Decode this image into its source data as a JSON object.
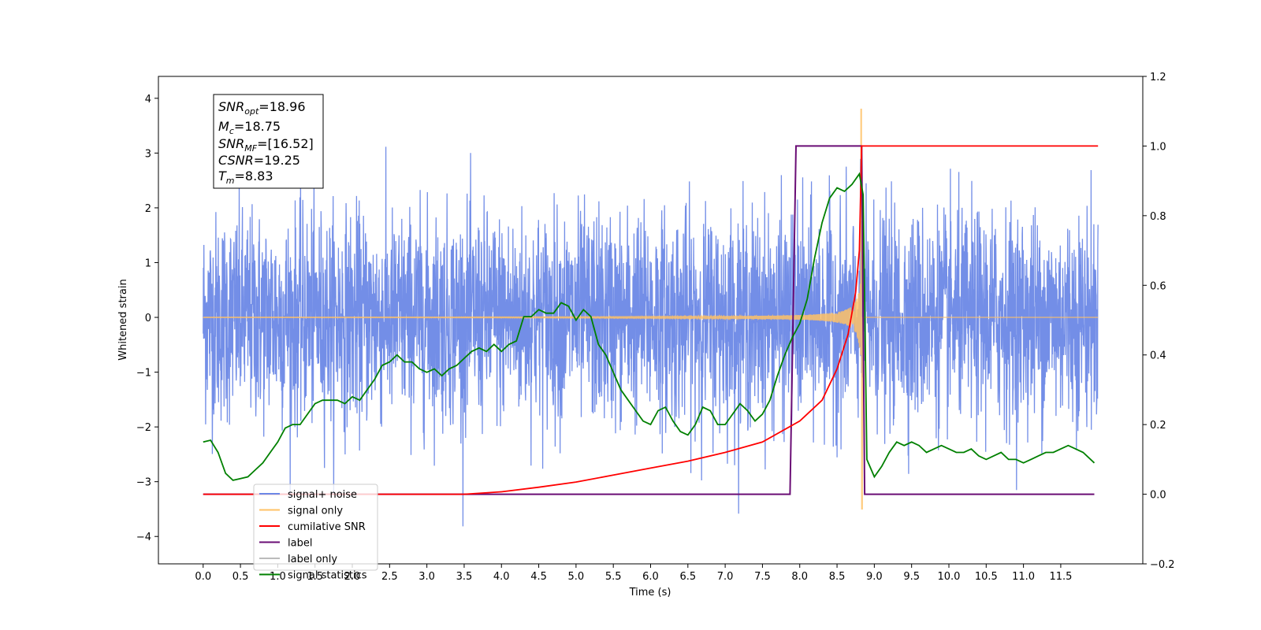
{
  "chart_data": {
    "type": "line",
    "xlabel": "Time (s)",
    "ylabel_left": "Whitened strain",
    "xlim": [
      -0.6,
      12.6
    ],
    "ylim_left": [
      -4.5,
      4.4
    ],
    "ylim_right": [
      -0.2,
      1.2
    ],
    "x_ticks": [
      "0.0",
      "0.5",
      "1.0",
      "1.5",
      "2.0",
      "2.5",
      "3.0",
      "3.5",
      "4.0",
      "4.5",
      "5.0",
      "5.5",
      "6.0",
      "6.5",
      "7.0",
      "7.5",
      "8.0",
      "8.5",
      "9.0",
      "9.5",
      "10.0",
      "10.5",
      "11.0",
      "11.5"
    ],
    "y_ticks_left": [
      "4",
      "3",
      "2",
      "1",
      "0",
      "−1",
      "−2",
      "−3",
      "−4"
    ],
    "y_ticks_right": [
      "1.2",
      "1.0",
      "0.8",
      "0.6",
      "0.4",
      "0.2",
      "0.0",
      "−0.2"
    ],
    "grid": false,
    "legend_position": "lower-left",
    "legend": [
      {
        "label": "signal+ noise",
        "color": "#6b88e6"
      },
      {
        "label": "signal only",
        "color": "#ffc266"
      },
      {
        "label": "cumilative SNR",
        "color": "#ff0000"
      },
      {
        "label": "label",
        "color": "#6a0d75"
      },
      {
        "label": "label only",
        "color": "#bbbbbb"
      },
      {
        "label": "signal statistics",
        "color": "#008000"
      }
    ],
    "stats_box": {
      "snr_opt": {
        "base": "SNR",
        "sub": "opt",
        "value": "=18.96"
      },
      "mc": {
        "base": "M",
        "sub": "c",
        "value": "=18.75"
      },
      "snr_mf": {
        "base": "SNR",
        "sub": "MF",
        "value": "=[16.52]"
      },
      "csnr": {
        "base": "CSNR",
        "sub": "",
        "value": "=19.25"
      },
      "tm": {
        "base": "T",
        "sub": "m",
        "value": "=8.83"
      }
    },
    "noise": {
      "t_start": 0.0,
      "t_end": 12.0,
      "std": 1.0,
      "spike_max": 4.0
    },
    "signal_only": {
      "t_start": 0.0,
      "merger_time": 8.83,
      "peak_up": 3.8,
      "peak_down": -3.5
    },
    "cumulative_snr": {
      "axis": "right",
      "x": [
        0.0,
        3.5,
        4.0,
        4.5,
        5.0,
        5.5,
        6.0,
        6.5,
        7.0,
        7.5,
        8.0,
        8.3,
        8.5,
        8.65,
        8.75,
        8.8,
        8.83,
        8.85,
        12.0
      ],
      "y": [
        0.0,
        0.0,
        0.007,
        0.02,
        0.035,
        0.055,
        0.075,
        0.095,
        0.12,
        0.15,
        0.21,
        0.27,
        0.36,
        0.46,
        0.58,
        0.7,
        1.0,
        1.0,
        1.0
      ]
    },
    "label": {
      "axis": "right",
      "x": [
        0.0,
        7.87,
        7.95,
        8.83,
        8.87,
        11.95
      ],
      "y": [
        0.0,
        0.0,
        1.0,
        1.0,
        0.0,
        0.0
      ]
    },
    "signal_statistics": {
      "axis": "right",
      "x": [
        0.0,
        0.1,
        0.2,
        0.3,
        0.4,
        0.5,
        0.6,
        0.7,
        0.8,
        0.9,
        1.0,
        1.1,
        1.2,
        1.3,
        1.4,
        1.5,
        1.6,
        1.7,
        1.8,
        1.9,
        2.0,
        2.1,
        2.2,
        2.3,
        2.4,
        2.5,
        2.6,
        2.7,
        2.8,
        2.9,
        3.0,
        3.1,
        3.2,
        3.3,
        3.4,
        3.5,
        3.6,
        3.7,
        3.8,
        3.9,
        4.0,
        4.1,
        4.2,
        4.3,
        4.4,
        4.5,
        4.6,
        4.7,
        4.8,
        4.9,
        5.0,
        5.1,
        5.2,
        5.3,
        5.4,
        5.5,
        5.6,
        5.7,
        5.8,
        5.9,
        6.0,
        6.1,
        6.2,
        6.3,
        6.4,
        6.5,
        6.6,
        6.7,
        6.8,
        6.9,
        7.0,
        7.1,
        7.2,
        7.3,
        7.4,
        7.5,
        7.6,
        7.7,
        7.8,
        7.9,
        8.0,
        8.1,
        8.2,
        8.3,
        8.4,
        8.5,
        8.6,
        8.7,
        8.8,
        8.85,
        8.9,
        9.0,
        9.1,
        9.2,
        9.3,
        9.4,
        9.5,
        9.6,
        9.7,
        9.8,
        9.9,
        10.0,
        10.1,
        10.2,
        10.3,
        10.4,
        10.5,
        10.6,
        10.7,
        10.8,
        10.9,
        11.0,
        11.1,
        11.2,
        11.3,
        11.4,
        11.5,
        11.6,
        11.7,
        11.8,
        11.95
      ],
      "y": [
        0.15,
        0.155,
        0.12,
        0.06,
        0.04,
        0.045,
        0.05,
        0.07,
        0.09,
        0.12,
        0.15,
        0.19,
        0.2,
        0.2,
        0.23,
        0.26,
        0.27,
        0.27,
        0.27,
        0.26,
        0.28,
        0.27,
        0.3,
        0.33,
        0.37,
        0.38,
        0.4,
        0.38,
        0.38,
        0.36,
        0.35,
        0.36,
        0.34,
        0.36,
        0.37,
        0.39,
        0.41,
        0.42,
        0.41,
        0.43,
        0.41,
        0.43,
        0.44,
        0.51,
        0.51,
        0.53,
        0.52,
        0.52,
        0.55,
        0.54,
        0.5,
        0.53,
        0.51,
        0.43,
        0.4,
        0.35,
        0.3,
        0.27,
        0.24,
        0.21,
        0.2,
        0.24,
        0.25,
        0.21,
        0.18,
        0.17,
        0.2,
        0.25,
        0.24,
        0.2,
        0.2,
        0.23,
        0.26,
        0.24,
        0.21,
        0.23,
        0.27,
        0.34,
        0.4,
        0.45,
        0.49,
        0.56,
        0.68,
        0.78,
        0.85,
        0.88,
        0.87,
        0.89,
        0.92,
        0.86,
        0.1,
        0.05,
        0.08,
        0.12,
        0.15,
        0.14,
        0.15,
        0.14,
        0.12,
        0.13,
        0.14,
        0.13,
        0.12,
        0.12,
        0.13,
        0.11,
        0.1,
        0.11,
        0.12,
        0.1,
        0.1,
        0.09,
        0.1,
        0.11,
        0.12,
        0.12,
        0.13,
        0.14,
        0.13,
        0.12,
        0.09
      ]
    }
  }
}
